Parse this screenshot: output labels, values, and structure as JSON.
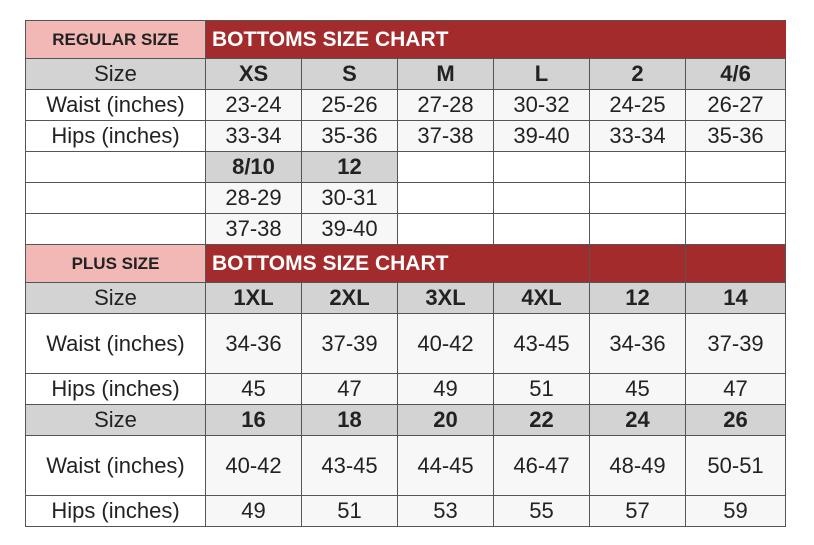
{
  "colors": {
    "title_bar": "#a32b2b",
    "badge": "#f2b8b6",
    "header_row": "#d3d3d3",
    "border": "#555555"
  },
  "regular": {
    "badge": "REGULAR SIZE",
    "title": "BOTTOMS SIZE CHART",
    "size_label": "Size",
    "waist_label": "Waist (inches)",
    "hips_label": "Hips (inches)",
    "sizes": [
      "XS",
      "S",
      "M",
      "L",
      "2",
      "4/6"
    ],
    "waist": [
      "23-24",
      "25-26",
      "27-28",
      "30-32",
      "24-25",
      "26-27"
    ],
    "hips": [
      "33-34",
      "35-36",
      "37-38",
      "39-40",
      "33-34",
      "35-36"
    ],
    "extra_sizes": [
      "8/10",
      "12"
    ],
    "extra_waist": [
      "28-29",
      "30-31"
    ],
    "extra_hips": [
      "37-38",
      "39-40"
    ]
  },
  "plus": {
    "badge": "PLUS SIZE",
    "title": "BOTTOMS SIZE CHART",
    "size_label": "Size",
    "waist_label": "Waist (inches)",
    "hips_label": "Hips (inches)",
    "sizes": [
      "1XL",
      "2XL",
      "3XL",
      "4XL",
      "12",
      "14"
    ],
    "waist": [
      "34-36",
      "37-39",
      "40-42",
      "43-45",
      "34-36",
      "37-39"
    ],
    "hips": [
      "45",
      "47",
      "49",
      "51",
      "45",
      "47"
    ],
    "sizes2": [
      "16",
      "18",
      "20",
      "22",
      "24",
      "26"
    ],
    "waist2": [
      "40-42",
      "43-45",
      "44-45",
      "46-47",
      "48-49",
      "50-51"
    ],
    "hips2": [
      "49",
      "51",
      "53",
      "55",
      "57",
      "59"
    ]
  }
}
